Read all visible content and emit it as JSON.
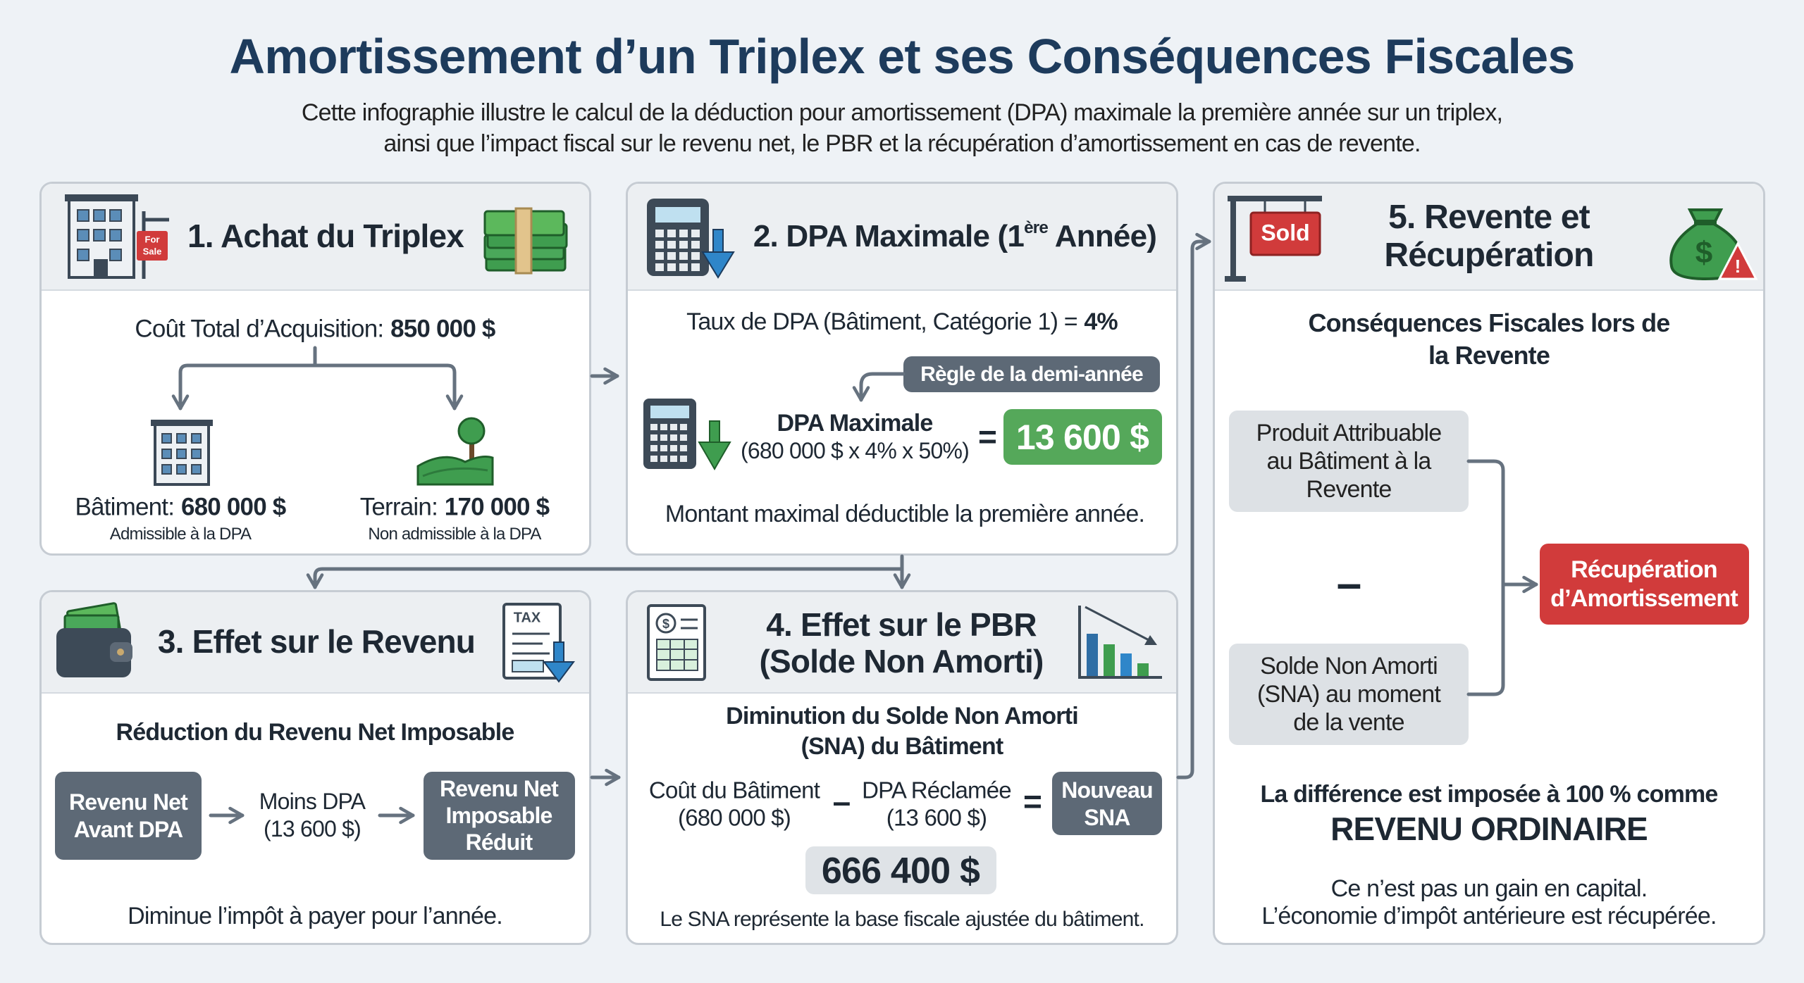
{
  "header": {
    "title": "Amortissement d’un Triplex et ses Conséquences Fiscales",
    "subtitle": [
      "Cette infographie illustre le calcul de la déduction pour amortissement (DPA) maximale la première année sur un triplex,",
      "ainsi que l’impact fiscal sur le revenu net, le PBR et la récupération d’amortissement en cas de revente."
    ]
  },
  "purchase": {
    "title": "1. Achat du Triplex",
    "icon_sign": [
      "For",
      "Sale"
    ],
    "total_label": "Coût Total d’Acquisition:",
    "total_value": "850 000 $",
    "building": {
      "label": "Bâtiment:",
      "value": "680 000 $",
      "note": "Admissible à la DPA"
    },
    "land": {
      "label": "Terrain:",
      "value": "170 000 $",
      "note": "Non admissible à la DPA"
    }
  },
  "cca": {
    "title": [
      "2. DPA Maximale (1",
      "ère",
      " Année)"
    ],
    "rate_label": "Taux de DPA (Bâtiment, Catégorie 1) =",
    "rate_value": "4%",
    "rule": "Règle de la demi-année",
    "formula_label": "DPA Maximale",
    "formula": "(680 000 $ x 4% x 50%)",
    "equals": "=",
    "result": "13 600 $",
    "note": "Montant maximal déductible la première année."
  },
  "income": {
    "title": "3. Effet sur le Revenu",
    "icon_tax": "TAX",
    "subtitle": "Réduction du Revenu Net Imposable",
    "before": [
      "Revenu Net",
      "Avant DPA"
    ],
    "minus": [
      "Moins DPA",
      "(13 600 $)"
    ],
    "after": [
      "Revenu Net",
      "Imposable",
      "Réduit"
    ],
    "note": "Diminue l’impôt à payer pour l’année."
  },
  "ucc": {
    "title": [
      "4. Effet sur le PBR",
      "(Solde Non Amorti)"
    ],
    "icon_dollar": "$",
    "subtitle": [
      "Diminution du Solde Non Amorti",
      "(SNA) du Bâtiment"
    ],
    "cost": [
      "Coût du Bâtiment",
      "(680 000 $)"
    ],
    "minus": "–",
    "claimed": [
      "DPA Réclamée",
      "(13 600 $)"
    ],
    "equals": "=",
    "new": [
      "Nouveau",
      "SNA"
    ],
    "result": "666 400 $",
    "note": "Le SNA représente la base fiscale ajustée du bâtiment."
  },
  "resale": {
    "title": [
      "5. Revente et",
      "Récupération"
    ],
    "icon_sold": "Sold",
    "icon_bag": "$",
    "icon_warning": "!",
    "subtitle": [
      "Conséquences Fiscales lors de",
      "la Revente"
    ],
    "proceeds": [
      "Produit Attribuable",
      "au Bâtiment à la",
      "Revente"
    ],
    "minus": "–",
    "ucc": [
      "Solde Non Amorti",
      "(SNA) au moment",
      "de la vente"
    ],
    "recapture": [
      "Récupération",
      "d’Amortissement"
    ],
    "conclusion": [
      "La différence est imposée à 100 % comme",
      "REVENU ORDINAIRE"
    ],
    "note": [
      "Ce n’est pas un gain en capital.",
      "L’économie d’impôt antérieure est récupérée."
    ]
  }
}
